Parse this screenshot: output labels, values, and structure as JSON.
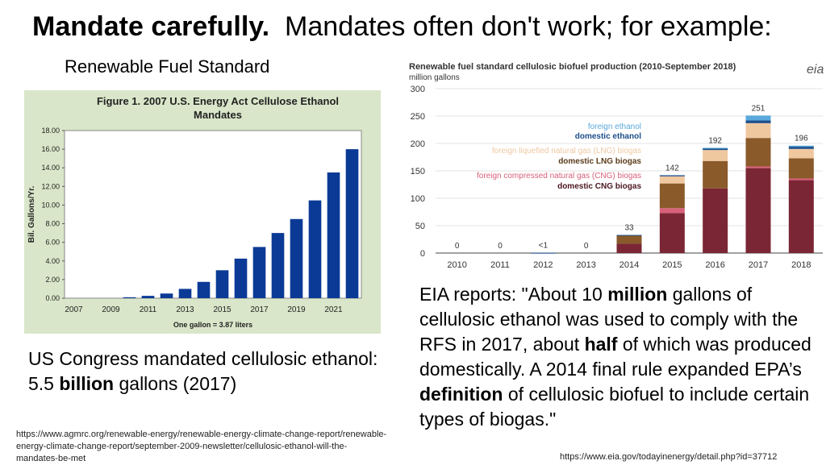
{
  "slide": {
    "title_bold": "Mandate carefully.",
    "title_rest": "Mandates often don't work; for example:",
    "rfs_label": "Renewable Fuel Standard",
    "congress_text_1": "US Congress mandated cellulosic ethanol: 5.5 ",
    "congress_text_bold": "billion",
    "congress_text_2": " gallons (2017)",
    "eia_quote": [
      {
        "t": "EIA reports: \"About 10 ",
        "b": false
      },
      {
        "t": "million",
        "b": true
      },
      {
        "t": " gallons of cellulosic ethanol was used to comply with the RFS in 2017, about ",
        "b": false
      },
      {
        "t": "half",
        "b": true
      },
      {
        "t": " of which was produced domestically. A 2014 final rule expanded EPA’s ",
        "b": false
      },
      {
        "t": "definition",
        "b": true
      },
      {
        "t": " of cellulosic biofuel to include certain types of biogas.\"",
        "b": false
      }
    ],
    "source_left": "https://www.agmrc.org/renewable-energy/renewable-energy-climate-change-report/renewable-energy-climate-change-report/september-2009-newsletter/cellulosic-ethanol-will-the-mandates-be-met",
    "source_right": "https://www.eia.gov/todayinenergy/detail.php?id=37712",
    "eia_logo": "eia"
  },
  "chart_data": [
    {
      "type": "bar",
      "title": "Figure 1. 2007 U.S. Energy Act Cellulose Ethanol Mandates",
      "ylabel": "Bil. Gallons/Yr.",
      "xlabel": "One gallon = 3.87 liters",
      "ylim": [
        0,
        18
      ],
      "yticks": [
        "0.00",
        "2.00",
        "4.00",
        "6.00",
        "8.00",
        "10.00",
        "12.00",
        "14.00",
        "16.00",
        "18.00"
      ],
      "xticks": [
        "2007",
        "2009",
        "2011",
        "2013",
        "2015",
        "2017",
        "2019",
        "2021"
      ],
      "categories": [
        "2007",
        "2008",
        "2009",
        "2010",
        "2011",
        "2012",
        "2013",
        "2014",
        "2015",
        "2016",
        "2017",
        "2018",
        "2019",
        "2020",
        "2021",
        "2022"
      ],
      "values": [
        0,
        0,
        0,
        0.1,
        0.25,
        0.5,
        1.0,
        1.75,
        3.0,
        4.25,
        5.5,
        7.0,
        8.5,
        10.5,
        13.5,
        16.0
      ],
      "bar_color": "#0b3a96",
      "background": "#d9e6c9"
    },
    {
      "type": "bar",
      "title": "Renewable fuel standard cellulosic biofuel production (2010-September 2018)",
      "ylabel": "million gallons",
      "ylim": [
        0,
        300
      ],
      "yticks": [
        0,
        50,
        100,
        150,
        200,
        250,
        300
      ],
      "categories": [
        "2010",
        "2011",
        "2012",
        "2013",
        "2014",
        "2015",
        "2016",
        "2017",
        "2018"
      ],
      "totals_labels": [
        "0",
        "0",
        "<1",
        "0",
        "33",
        "142",
        "192",
        "251",
        "196"
      ],
      "series": [
        {
          "name": "domestic CNG biogas",
          "color": "#7b2634",
          "values": [
            0,
            0,
            0,
            0,
            17,
            73,
            118,
            155,
            133
          ]
        },
        {
          "name": "foreign compressed natural gas (CNG) biogas",
          "color": "#d9607a",
          "values": [
            0,
            0,
            0,
            0,
            0,
            9,
            0,
            3,
            3
          ]
        },
        {
          "name": "domestic LNG biogas",
          "color": "#8a5a2b",
          "values": [
            0,
            0,
            0,
            0,
            15,
            45,
            50,
            52,
            37
          ]
        },
        {
          "name": "foreign liquefied natural gas (LNG) biogas",
          "color": "#efc8a0",
          "values": [
            0,
            0,
            0,
            0,
            0,
            13,
            20,
            27,
            17
          ]
        },
        {
          "name": "domestic ethanol",
          "color": "#1c4e8a",
          "values": [
            0,
            0,
            0.5,
            0,
            1,
            2,
            3,
            5,
            4
          ]
        },
        {
          "name": "foreign ethanol",
          "color": "#5aa9dd",
          "values": [
            0,
            0,
            0,
            0,
            0,
            0,
            1,
            9,
            2
          ]
        }
      ],
      "legend_placement": "upper-middle"
    }
  ]
}
